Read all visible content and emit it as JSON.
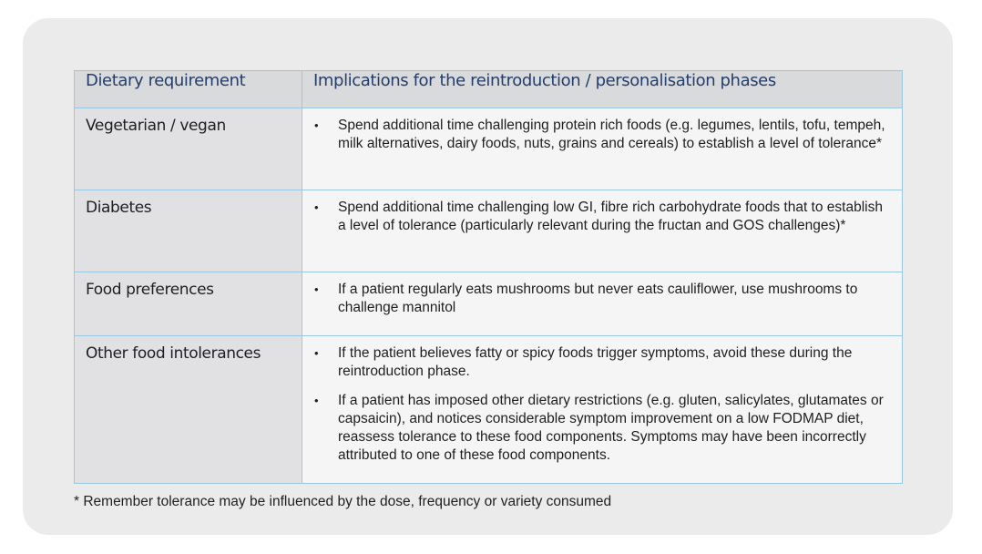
{
  "table": {
    "headers": [
      "Dietary requirement",
      "Implications for the reintroduction / personalisation phases"
    ],
    "rows": [
      {
        "requirement": "Vegetarian / vegan",
        "implications": [
          "Spend additional time challenging protein rich foods (e.g. legumes, lentils, tofu, tempeh, milk alternatives, dairy foods, nuts, grains and cereals) to establish a level of tolerance*"
        ]
      },
      {
        "requirement": "Diabetes",
        "implications": [
          "Spend additional time challenging low GI, fibre rich carbohydrate foods that to establish a level of tolerance (particularly relevant during the fructan and GOS challenges)*"
        ]
      },
      {
        "requirement": "Food preferences",
        "implications": [
          "If a patient regularly eats mushrooms but never eats cauliflower, use mushrooms to challenge mannitol"
        ]
      },
      {
        "requirement": "Other food intolerances",
        "implications": [
          "If the patient believes fatty or spicy foods trigger symptoms, avoid these during the reintroduction phase.",
          "If a patient has imposed other dietary restrictions (e.g. gluten, salicylates, glutamates or capsaicin), and notices considerable symptom improvement on a low FODMAP diet, reassess tolerance to these food components. Symptoms may have been incorrectly attributed to one of these food components."
        ]
      }
    ]
  },
  "footnote": "* Remember tolerance may be influenced by the dose, frequency or variety consumed",
  "colors": {
    "panel_bg": "#ebebeb",
    "header_bg": "#d9dadc",
    "header_text": "#243d6b",
    "border": "#9cc7e3"
  }
}
